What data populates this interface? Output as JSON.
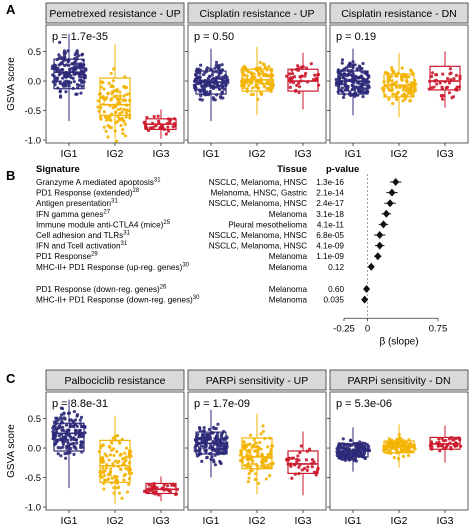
{
  "panel_letters": {
    "A": "A",
    "B": "B",
    "C": "C"
  },
  "colors": {
    "IG1": "#2e2a7a",
    "IG2": "#f3b300",
    "IG3": "#cc1a2d",
    "strip": "#d9d9d9"
  },
  "panel_a": {
    "ylabel": "GSVA score",
    "yticks": [
      "-1.0",
      "-0.5",
      "0.0",
      "0.5"
    ],
    "charts": [
      {
        "type": "box",
        "title": "Pemetrexed resistance - UP",
        "p": "p = 1.7e-35",
        "categories": [
          "IG1",
          "IG2",
          "IG3"
        ],
        "ylim": [
          -1.05,
          0.95
        ],
        "boxes": [
          {
            "group": "IG1",
            "q1": -0.13,
            "median": 0.15,
            "q3": 0.37,
            "wlo": -0.68,
            "whi": 0.8,
            "n": 170
          },
          {
            "group": "IG2",
            "q1": -0.58,
            "median": -0.4,
            "q3": 0.05,
            "wlo": -0.98,
            "whi": 0.62,
            "n": 110
          },
          {
            "group": "IG3",
            "q1": -0.82,
            "median": -0.73,
            "q3": -0.64,
            "wlo": -0.98,
            "whi": -0.48,
            "n": 40
          }
        ]
      },
      {
        "type": "box",
        "title": "Cisplatin resistance - UP",
        "p": "p = 0.50",
        "categories": [
          "IG1",
          "IG2",
          "IG3"
        ],
        "ylim": [
          -1.05,
          0.95
        ],
        "boxes": [
          {
            "group": "IG1",
            "q1": -0.22,
            "median": -0.02,
            "q3": 0.17,
            "wlo": -0.68,
            "whi": 0.55,
            "n": 170
          },
          {
            "group": "IG2",
            "q1": -0.17,
            "median": 0.02,
            "q3": 0.2,
            "wlo": -0.58,
            "whi": 0.58,
            "n": 110
          },
          {
            "group": "IG3",
            "q1": -0.17,
            "median": 0.0,
            "q3": 0.2,
            "wlo": -0.48,
            "whi": 0.48,
            "n": 40
          }
        ]
      },
      {
        "type": "box",
        "title": "Cisplatin resistance - DN",
        "p": "p = 0.19",
        "categories": [
          "IG1",
          "IG2",
          "IG3"
        ],
        "ylim": [
          -1.05,
          0.95
        ],
        "boxes": [
          {
            "group": "IG1",
            "q1": -0.22,
            "median": 0.0,
            "q3": 0.17,
            "wlo": -0.58,
            "whi": 0.55,
            "n": 170
          },
          {
            "group": "IG2",
            "q1": -0.27,
            "median": -0.07,
            "q3": 0.12,
            "wlo": -0.62,
            "whi": 0.48,
            "n": 110
          },
          {
            "group": "IG3",
            "q1": -0.15,
            "median": 0.0,
            "q3": 0.25,
            "wlo": -0.45,
            "whi": 0.5,
            "n": 40
          }
        ]
      }
    ]
  },
  "panel_b": {
    "headers": {
      "signature": "Signature",
      "tissue": "Tissue",
      "pvalue": "p-value"
    },
    "xlabel": "β (slope)",
    "xticks": [
      {
        "value": -0.25,
        "label": "-0.25"
      },
      {
        "value": 0,
        "label": "0"
      },
      {
        "value": 0.75,
        "label": "0.75"
      }
    ],
    "chart_data": {
      "type": "scatter",
      "xlim": [
        -0.25,
        0.75
      ],
      "rows": [
        {
          "signature": "Granzyme A mediated apoptosis",
          "sup": "31",
          "tissue": "NSCLC, Melanoma, HNSC",
          "p": "1.3e-16",
          "beta": 0.3,
          "ci": 0.06
        },
        {
          "signature": "PD1 Response (extended)",
          "sup": "28",
          "tissue": "Melanoma, HNSC, Gastric",
          "p": "2.1e-14",
          "beta": 0.26,
          "ci": 0.06
        },
        {
          "signature": "Antigen presentation",
          "sup": "31",
          "tissue": "NSCLC, Melanoma, HNSC",
          "p": "2.4e-17",
          "beta": 0.24,
          "ci": 0.06
        },
        {
          "signature": "IFN gamma genes",
          "sup": "27",
          "tissue": "Melanoma",
          "p": "3.1e-18",
          "beta": 0.2,
          "ci": 0.05
        },
        {
          "signature": "Immune module anti-CTLA4 (mice)",
          "sup": "25",
          "tissue": "Pleural mesothelioma",
          "p": "4.1e-11",
          "beta": 0.17,
          "ci": 0.05
        },
        {
          "signature": "Cell adhesion and TLRs",
          "sup": "31",
          "tissue": "NSCLC, Melanoma, HNSC",
          "p": "6.8e-05",
          "beta": 0.13,
          "ci": 0.06
        },
        {
          "signature": "IFN and Tcell activation",
          "sup": "31",
          "tissue": "NSCLC, Melanoma, HNSC",
          "p": "4.1e-09",
          "beta": 0.13,
          "ci": 0.05
        },
        {
          "signature": "PD1 Response",
          "sup": "29",
          "tissue": "Melanoma",
          "p": "1.1e-09",
          "beta": 0.11,
          "ci": 0.04
        },
        {
          "signature": "MHC-II+ PD1 Response (up-reg. genes)",
          "sup": "30",
          "tissue": "Melanoma",
          "p": "0.12",
          "beta": 0.04,
          "ci": 0.03
        },
        {
          "signature": "PD1 Response (down-reg. genes)",
          "sup": "26",
          "tissue": "Melanoma",
          "p": "0.60",
          "beta": -0.01,
          "ci": 0.03,
          "gap_before": true
        },
        {
          "signature": "MHC-II+ PD1 Response (down-reg. genes)",
          "sup": "30",
          "tissue": "Melanoma",
          "p": "0.035",
          "beta": -0.03,
          "ci": 0.03
        }
      ]
    }
  },
  "panel_c": {
    "ylabel": "GSVA score",
    "yticks": [
      "-1.0",
      "-0.5",
      "0.0",
      "0.5"
    ],
    "charts": [
      {
        "type": "box",
        "title": "Palbociclib resistance",
        "p": "p = 8.8e-31",
        "categories": [
          "IG1",
          "IG2",
          "IG3"
        ],
        "ylim": [
          -1.05,
          0.95
        ],
        "boxes": [
          {
            "group": "IG1",
            "q1": -0.05,
            "median": 0.25,
            "q3": 0.42,
            "wlo": -0.68,
            "whi": 0.82,
            "n": 170
          },
          {
            "group": "IG2",
            "q1": -0.58,
            "median": -0.3,
            "q3": 0.13,
            "wlo": -0.95,
            "whi": 0.55,
            "n": 110
          },
          {
            "group": "IG3",
            "q1": -0.77,
            "median": -0.7,
            "q3": -0.6,
            "wlo": -0.9,
            "whi": -0.48,
            "n": 40
          }
        ]
      },
      {
        "type": "box",
        "title": "PARPi sensitivity - UP",
        "p": "p = 1.7e-09",
        "categories": [
          "IG1",
          "IG2",
          "IG3"
        ],
        "ylim": [
          -1.05,
          0.95
        ],
        "boxes": [
          {
            "group": "IG1",
            "q1": -0.1,
            "median": 0.08,
            "q3": 0.27,
            "wlo": -0.5,
            "whi": 0.65,
            "n": 170
          },
          {
            "group": "IG2",
            "q1": -0.35,
            "median": -0.15,
            "q3": 0.17,
            "wlo": -0.78,
            "whi": 0.58,
            "n": 110
          },
          {
            "group": "IG3",
            "q1": -0.43,
            "median": -0.27,
            "q3": -0.05,
            "wlo": -0.8,
            "whi": 0.28,
            "n": 40
          }
        ]
      },
      {
        "type": "box",
        "title": "PARPi sensitivity - DN",
        "p": "p = 5.3e-06",
        "categories": [
          "IG1",
          "IG2",
          "IG3"
        ],
        "ylim": [
          -1.05,
          0.95
        ],
        "boxes": [
          {
            "group": "IG1",
            "q1": -0.15,
            "median": -0.05,
            "q3": 0.07,
            "wlo": -0.4,
            "whi": 0.35,
            "n": 170
          },
          {
            "group": "IG2",
            "q1": -0.08,
            "median": 0.02,
            "q3": 0.12,
            "wlo": -0.33,
            "whi": 0.4,
            "n": 110
          },
          {
            "group": "IG3",
            "q1": -0.02,
            "median": 0.07,
            "q3": 0.18,
            "wlo": -0.25,
            "whi": 0.38,
            "n": 40
          }
        ]
      }
    ]
  }
}
